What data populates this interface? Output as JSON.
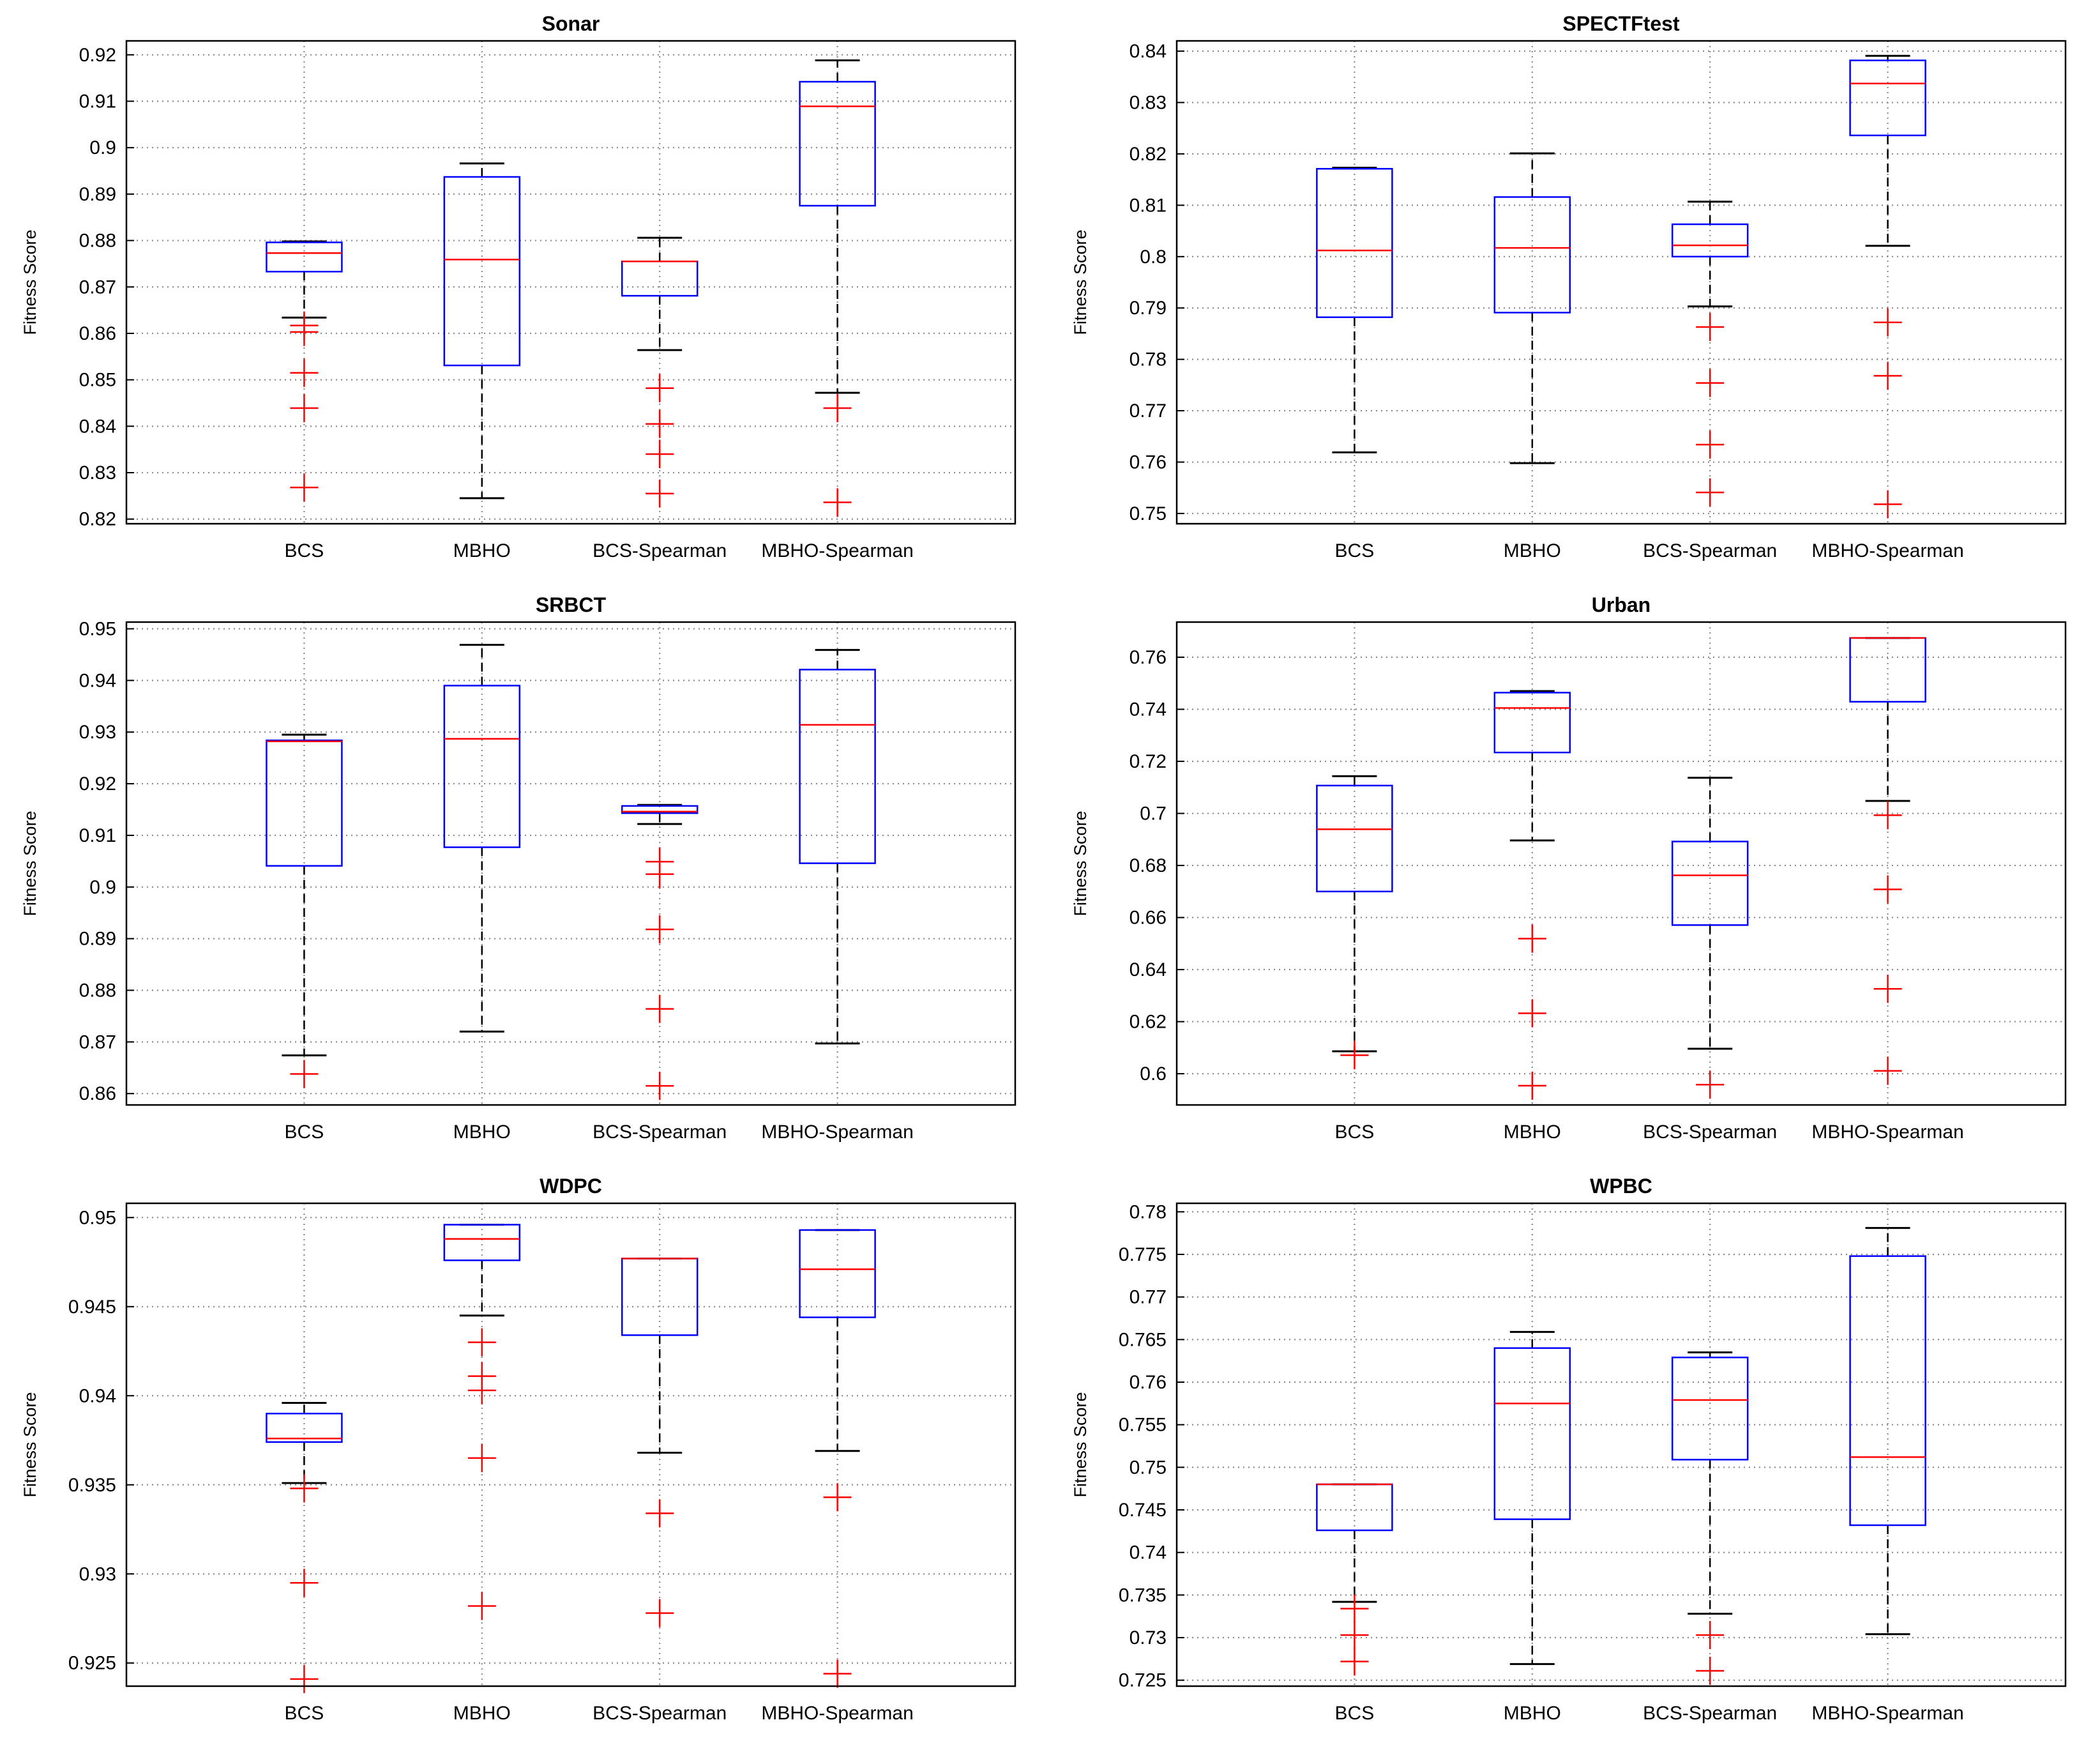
{
  "chart_data": [
    {
      "type": "boxplot",
      "title": "Sonar",
      "ylabel": "Fitness Score",
      "categories": [
        "BCS",
        "MBHO",
        "BCS-Spearman",
        "MBHO-Spearman"
      ],
      "ylim": [
        0.819,
        0.923
      ],
      "yticks": [
        0.82,
        0.83,
        0.84,
        0.85,
        0.86,
        0.87,
        0.88,
        0.89,
        0.9,
        0.91,
        0.92
      ],
      "ytick_labels": [
        "0.82",
        "0.83",
        "0.84",
        "0.85",
        "0.86",
        "0.87",
        "0.88",
        "0.89",
        "0.9",
        "0.91",
        "0.92"
      ],
      "boxes": [
        {
          "q1": 0.8733,
          "median": 0.8773,
          "q3": 0.8796,
          "whisker_low": 0.8634,
          "whisker_high": 0.8798,
          "outliers": [
            0.8268,
            0.8439,
            0.8515,
            0.8603,
            0.8617
          ]
        },
        {
          "q1": 0.8531,
          "median": 0.8759,
          "q3": 0.8937,
          "whisker_low": 0.8245,
          "whisker_high": 0.8966,
          "outliers": []
        },
        {
          "q1": 0.8681,
          "median": 0.8755,
          "q3": 0.8755,
          "whisker_low": 0.8564,
          "whisker_high": 0.8806,
          "outliers": [
            0.8255,
            0.834,
            0.8405,
            0.8482
          ]
        },
        {
          "q1": 0.8875,
          "median": 0.9089,
          "q3": 0.9142,
          "whisker_low": 0.8472,
          "whisker_high": 0.9188,
          "outliers": [
            0.8236,
            0.8439
          ]
        }
      ]
    },
    {
      "type": "boxplot",
      "title": "SPECTFtest",
      "ylabel": "Fitness Score",
      "categories": [
        "BCS",
        "MBHO",
        "BCS-Spearman",
        "MBHO-Spearman"
      ],
      "ylim": [
        0.748,
        0.842
      ],
      "yticks": [
        0.75,
        0.76,
        0.77,
        0.78,
        0.79,
        0.8,
        0.81,
        0.82,
        0.83,
        0.84
      ],
      "ytick_labels": [
        "0.75",
        "0.76",
        "0.77",
        "0.78",
        "0.79",
        "0.8",
        "0.81",
        "0.82",
        "0.83",
        "0.84"
      ],
      "boxes": [
        {
          "q1": 0.7882,
          "median": 0.8012,
          "q3": 0.8171,
          "whisker_low": 0.7619,
          "whisker_high": 0.8173,
          "outliers": []
        },
        {
          "q1": 0.7891,
          "median": 0.8017,
          "q3": 0.8116,
          "whisker_low": 0.7598,
          "whisker_high": 0.8201,
          "outliers": []
        },
        {
          "q1": 0.8,
          "median": 0.8022,
          "q3": 0.8063,
          "whisker_low": 0.7903,
          "whisker_high": 0.8107,
          "outliers": [
            0.7541,
            0.7634,
            0.7754,
            0.7863
          ]
        },
        {
          "q1": 0.8236,
          "median": 0.8337,
          "q3": 0.8382,
          "whisker_low": 0.8021,
          "whisker_high": 0.8391,
          "outliers": [
            0.7518,
            0.7768,
            0.7872
          ]
        }
      ]
    },
    {
      "type": "boxplot",
      "title": "SRBCT",
      "ylabel": "Fitness Score",
      "categories": [
        "BCS",
        "MBHO",
        "BCS-Spearman",
        "MBHO-Spearman"
      ],
      "ylim": [
        0.8578,
        0.9513
      ],
      "yticks": [
        0.86,
        0.87,
        0.88,
        0.89,
        0.9,
        0.91,
        0.92,
        0.93,
        0.94,
        0.95
      ],
      "ytick_labels": [
        "0.86",
        "0.87",
        "0.88",
        "0.89",
        "0.9",
        "0.91",
        "0.92",
        "0.93",
        "0.94",
        "0.95"
      ],
      "boxes": [
        {
          "q1": 0.9041,
          "median": 0.9282,
          "q3": 0.9284,
          "whisker_low": 0.8674,
          "whisker_high": 0.9295,
          "outliers": [
            0.8638
          ]
        },
        {
          "q1": 0.9077,
          "median": 0.9287,
          "q3": 0.939,
          "whisker_low": 0.872,
          "whisker_high": 0.9469,
          "outliers": []
        },
        {
          "q1": 0.9143,
          "median": 0.9146,
          "q3": 0.9157,
          "whisker_low": 0.9122,
          "whisker_high": 0.9159,
          "outliers": [
            0.8615,
            0.8764,
            0.8918,
            0.9025,
            0.9049
          ]
        },
        {
          "q1": 0.9046,
          "median": 0.9314,
          "q3": 0.9421,
          "whisker_low": 0.8697,
          "whisker_high": 0.9459,
          "outliers": []
        }
      ]
    },
    {
      "type": "boxplot",
      "title": "Urban",
      "ylabel": "Fitness Score",
      "categories": [
        "BCS",
        "MBHO",
        "BCS-Spearman",
        "MBHO-Spearman"
      ],
      "ylim": [
        0.588,
        0.7735
      ],
      "yticks": [
        0.6,
        0.62,
        0.64,
        0.66,
        0.68,
        0.7,
        0.72,
        0.74,
        0.76
      ],
      "ytick_labels": [
        "0.6",
        "0.62",
        "0.64",
        "0.66",
        "0.68",
        "0.7",
        "0.72",
        "0.74",
        "0.76"
      ],
      "boxes": [
        {
          "q1": 0.67,
          "median": 0.6939,
          "q3": 0.7107,
          "whisker_low": 0.6086,
          "whisker_high": 0.7143,
          "outliers": [
            0.6071
          ]
        },
        {
          "q1": 0.7234,
          "median": 0.7405,
          "q3": 0.7464,
          "whisker_low": 0.6896,
          "whisker_high": 0.747,
          "outliers": [
            0.5954,
            0.6232,
            0.6519
          ]
        },
        {
          "q1": 0.6571,
          "median": 0.6762,
          "q3": 0.6892,
          "whisker_low": 0.6096,
          "whisker_high": 0.7137,
          "outliers": [
            0.5958
          ]
        },
        {
          "q1": 0.7429,
          "median": 0.7674,
          "q3": 0.7674,
          "whisker_low": 0.7048,
          "whisker_high": 0.7674,
          "outliers": [
            0.6011,
            0.6326,
            0.6708,
            0.6993
          ]
        }
      ]
    },
    {
      "type": "boxplot",
      "title": "WDPC",
      "ylabel": "Fitness Score",
      "categories": [
        "BCS",
        "MBHO",
        "BCS-Spearman",
        "MBHO-Spearman"
      ],
      "ylim": [
        0.9237,
        0.9508
      ],
      "yticks": [
        0.925,
        0.93,
        0.935,
        0.94,
        0.945,
        0.95
      ],
      "ytick_labels": [
        "0.925",
        "0.93",
        "0.935",
        "0.94",
        "0.945",
        "0.95"
      ],
      "boxes": [
        {
          "q1": 0.9374,
          "median": 0.9376,
          "q3": 0.939,
          "whisker_low": 0.9351,
          "whisker_high": 0.9396,
          "outliers": [
            0.9241,
            0.9295,
            0.9348
          ]
        },
        {
          "q1": 0.9476,
          "median": 0.9488,
          "q3": 0.9496,
          "whisker_low": 0.9445,
          "whisker_high": 0.9496,
          "outliers": [
            0.9282,
            0.9365,
            0.9403,
            0.9411,
            0.943
          ]
        },
        {
          "q1": 0.9434,
          "median": 0.9477,
          "q3": 0.9477,
          "whisker_low": 0.9368,
          "whisker_high": 0.9477,
          "outliers": [
            0.9278,
            0.9334
          ]
        },
        {
          "q1": 0.9444,
          "median": 0.9471,
          "q3": 0.9493,
          "whisker_low": 0.9369,
          "whisker_high": 0.9493,
          "outliers": [
            0.9244,
            0.9343
          ]
        }
      ]
    },
    {
      "type": "boxplot",
      "title": "WPBC",
      "ylabel": "Fitness Score",
      "categories": [
        "BCS",
        "MBHO",
        "BCS-Spearman",
        "MBHO-Spearman"
      ],
      "ylim": [
        0.7243,
        0.781
      ],
      "yticks": [
        0.725,
        0.73,
        0.735,
        0.74,
        0.745,
        0.75,
        0.755,
        0.76,
        0.765,
        0.77,
        0.775,
        0.78
      ],
      "ytick_labels": [
        "0.725",
        "0.73",
        "0.735",
        "0.74",
        "0.745",
        "0.75",
        "0.755",
        "0.76",
        "0.765",
        "0.77",
        "0.775",
        "0.78"
      ],
      "boxes": [
        {
          "q1": 0.7426,
          "median": 0.748,
          "q3": 0.748,
          "whisker_low": 0.7342,
          "whisker_high": 0.748,
          "outliers": [
            0.7272,
            0.7303,
            0.7334
          ]
        },
        {
          "q1": 0.7439,
          "median": 0.7575,
          "q3": 0.764,
          "whisker_low": 0.7269,
          "whisker_high": 0.7659,
          "outliers": []
        },
        {
          "q1": 0.7509,
          "median": 0.7579,
          "q3": 0.7629,
          "whisker_low": 0.7328,
          "whisker_high": 0.7635,
          "outliers": [
            0.7261,
            0.7303
          ]
        },
        {
          "q1": 0.7432,
          "median": 0.7512,
          "q3": 0.7748,
          "whisker_low": 0.7304,
          "whisker_high": 0.7781,
          "outliers": []
        }
      ]
    }
  ]
}
